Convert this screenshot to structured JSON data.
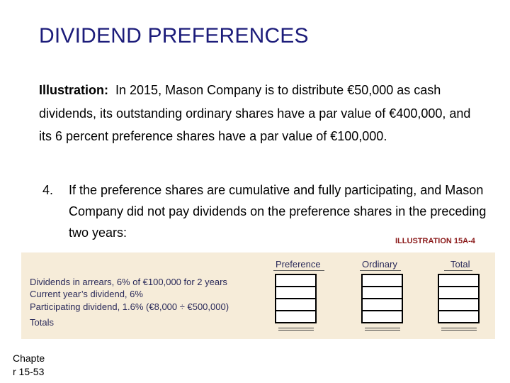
{
  "title": "DIVIDEND PREFERENCES",
  "illustration": {
    "lead": "Illustration:",
    "text": "In 2015, Mason Company is to distribute €50,000 as cash dividends, its outstanding ordinary shares have a par value of €400,000, and its 6 percent preference shares have a par value of €100,000."
  },
  "item": {
    "number": "4.",
    "text": "If the preference shares are cumulative and fully participating, and Mason Company did not pay dividends on the preference shares in the preceding two years:"
  },
  "illustration_label": "ILLUSTRATION 15A-4",
  "table": {
    "columns": [
      "Preference",
      "Ordinary",
      "Total"
    ],
    "rows": [
      "Dividends in arrears, 6% of €100,000 for 2 years",
      "Current year’s dividend, 6%",
      "Participating dividend, 1.6% (€8,000 ÷ €500,000)",
      "Totals"
    ]
  },
  "footer": {
    "line1": "Chapte",
    "line2": "r 15-53"
  }
}
